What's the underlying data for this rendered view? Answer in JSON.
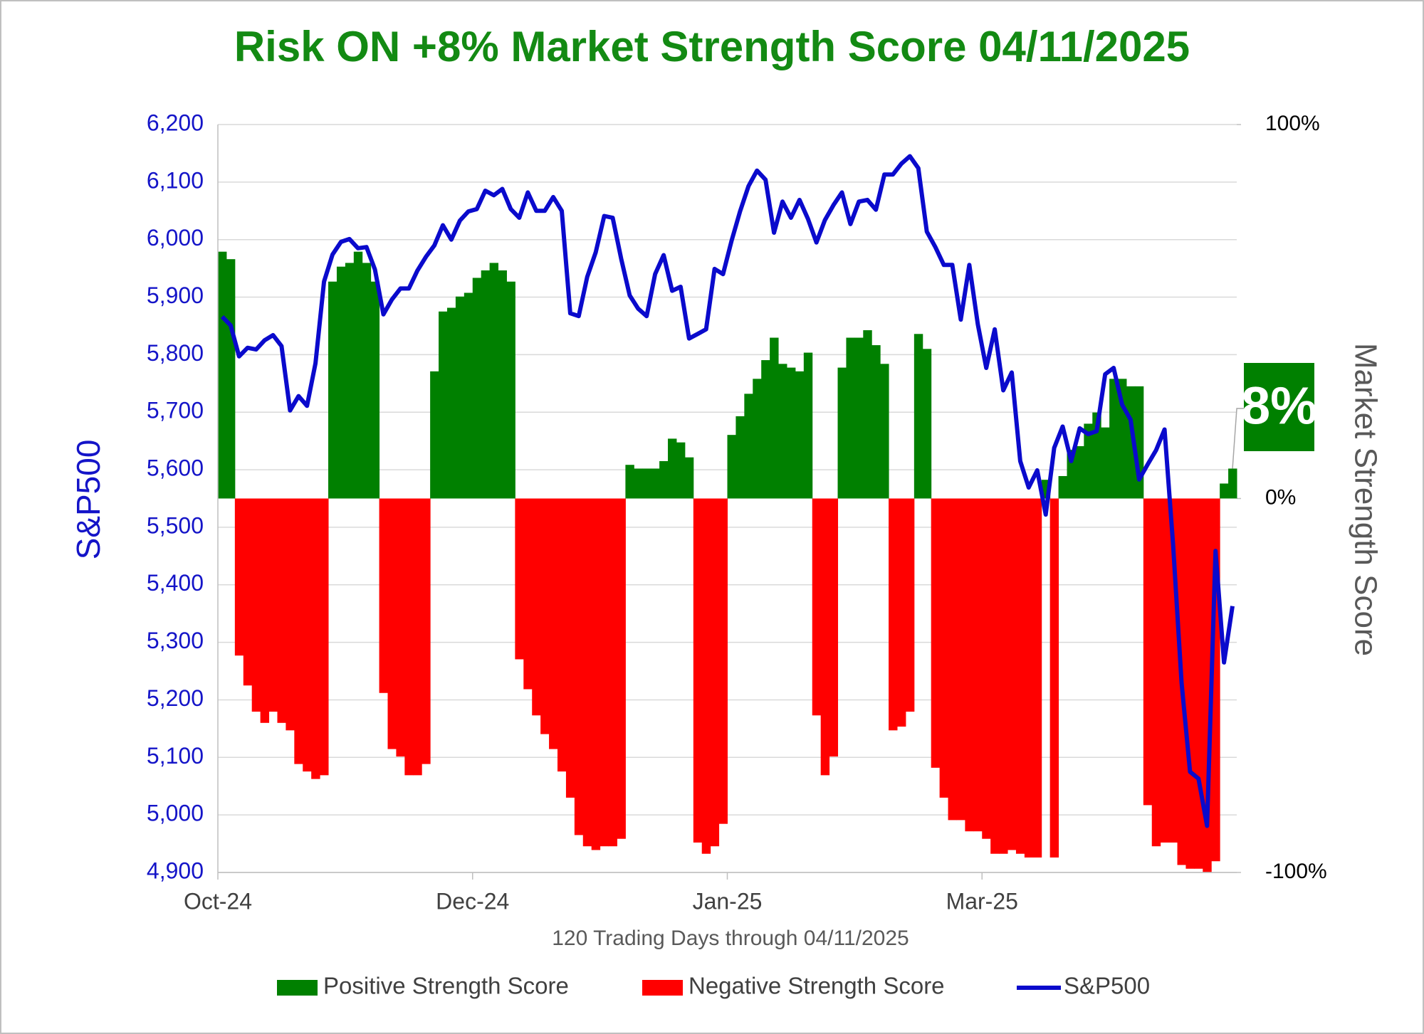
{
  "chart_data": {
    "type": "bar",
    "title": "Risk ON +8% Market Strength Score 04/11/2025",
    "x_label": "120 Trading Days through 04/11/2025",
    "y_label": "S&P500",
    "y2_label": "Market Strength Score",
    "annotation": "8%",
    "grid": true,
    "legend": "bottom",
    "categories": [
      "Oct-24",
      null,
      null,
      null,
      null,
      null,
      null,
      null,
      null,
      null,
      null,
      null,
      null,
      null,
      null,
      null,
      null,
      null,
      null,
      null,
      null,
      null,
      null,
      null,
      null,
      null,
      null,
      null,
      null,
      null,
      "Dec-24",
      null,
      null,
      null,
      null,
      null,
      null,
      null,
      null,
      null,
      null,
      null,
      null,
      null,
      null,
      null,
      null,
      null,
      null,
      null,
      null,
      null,
      null,
      null,
      null,
      null,
      null,
      null,
      null,
      null,
      "Jan-25",
      null,
      null,
      null,
      null,
      null,
      null,
      null,
      null,
      null,
      null,
      null,
      null,
      null,
      null,
      null,
      null,
      null,
      null,
      null,
      null,
      null,
      null,
      null,
      null,
      null,
      null,
      null,
      null,
      null,
      "Mar-25",
      null,
      null,
      null,
      null,
      null,
      null,
      null,
      null,
      null,
      null,
      null,
      null,
      null,
      null,
      null,
      null,
      null,
      null,
      null,
      null,
      null,
      null,
      null,
      null,
      null,
      null,
      null,
      null,
      null
    ],
    "ylim": [
      4900,
      6200
    ],
    "yticks": [
      {
        "value": 4900,
        "label": "4,900"
      },
      {
        "value": 5000,
        "label": "5,000"
      },
      {
        "value": 5100,
        "label": "5,100"
      },
      {
        "value": 5200,
        "label": "5,200"
      },
      {
        "value": 5300,
        "label": "5,300"
      },
      {
        "value": 5400,
        "label": "5,400"
      },
      {
        "value": 5500,
        "label": "5,500"
      },
      {
        "value": 5600,
        "label": "5,600"
      },
      {
        "value": 5700,
        "label": "5,700"
      },
      {
        "value": 5800,
        "label": "5,800"
      },
      {
        "value": 5900,
        "label": "5,900"
      },
      {
        "value": 6000,
        "label": "6,000"
      },
      {
        "value": 6100,
        "label": "6,100"
      },
      {
        "value": 6200,
        "label": "6,200"
      }
    ],
    "y2lim": [
      -100,
      100
    ],
    "y2ticks": [
      {
        "value": -100,
        "label": "-100%"
      },
      {
        "value": 0,
        "label": "0%"
      },
      {
        "value": 100,
        "label": "100%"
      }
    ],
    "series": [
      {
        "name": "Positive Strength Score",
        "type": "bar",
        "axis": "y2",
        "color": "#008000",
        "values": [
          66,
          64,
          null,
          null,
          null,
          null,
          null,
          null,
          null,
          null,
          null,
          null,
          null,
          58,
          62,
          63,
          66,
          63,
          58,
          null,
          null,
          null,
          null,
          null,
          null,
          34,
          50,
          51,
          54,
          55,
          59,
          61,
          63,
          61,
          58,
          null,
          null,
          null,
          null,
          null,
          null,
          null,
          null,
          null,
          null,
          null,
          null,
          null,
          9,
          8,
          8,
          8,
          10,
          16,
          15,
          11,
          null,
          null,
          null,
          null,
          17,
          22,
          28,
          32,
          37,
          43,
          36,
          35,
          34,
          39,
          null,
          null,
          null,
          35,
          43,
          43,
          45,
          41,
          36,
          null,
          null,
          null,
          44,
          40,
          null,
          null,
          null,
          null,
          null,
          null,
          null,
          null,
          null,
          null,
          null,
          null,
          null,
          5,
          null,
          6,
          13,
          14,
          20,
          23,
          19,
          32,
          32,
          30,
          30,
          null,
          null,
          null,
          null,
          null,
          null,
          null,
          null,
          null,
          4,
          8
        ]
      },
      {
        "name": "Negative Strength Score",
        "type": "bar",
        "axis": "y2",
        "color": "#ff0000",
        "values": [
          null,
          null,
          -42,
          -50,
          -57,
          -60,
          -57,
          -60,
          -62,
          -71,
          -73,
          -75,
          -74,
          null,
          null,
          null,
          null,
          null,
          null,
          -52,
          -67,
          -69,
          -74,
          -74,
          -71,
          null,
          null,
          null,
          null,
          null,
          null,
          null,
          null,
          null,
          null,
          -43,
          -51,
          -58,
          -63,
          -67,
          -73,
          -80,
          -90,
          -93,
          -94,
          -93,
          -93,
          -91,
          null,
          null,
          null,
          null,
          null,
          null,
          null,
          null,
          -92,
          -95,
          -93,
          -87,
          null,
          null,
          null,
          null,
          null,
          null,
          null,
          null,
          null,
          null,
          -58,
          -74,
          -69,
          null,
          null,
          null,
          null,
          null,
          null,
          -62,
          -61,
          -57,
          null,
          null,
          -72,
          -80,
          -86,
          -86,
          -89,
          -89,
          -91,
          -95,
          -95,
          -94,
          -95,
          -96,
          -96,
          null,
          -96,
          null,
          null,
          null,
          null,
          null,
          null,
          null,
          null,
          null,
          null,
          -82,
          -93,
          -92,
          -92,
          -98,
          -99,
          -99,
          -100,
          -97,
          null,
          null
        ]
      },
      {
        "name": "S&P500",
        "type": "line",
        "axis": "y",
        "color": "#0a0acc",
        "values": [
          5866,
          5851,
          5797,
          5812,
          5809,
          5825,
          5834,
          5815,
          5703,
          5728,
          5711,
          5785,
          5927,
          5974,
          5996,
          6001,
          5985,
          5987,
          5948,
          5870,
          5896,
          5915,
          5915,
          5946,
          5970,
          5990,
          6025,
          6000,
          6033,
          6049,
          6053,
          6085,
          6077,
          6088,
          6053,
          6038,
          6082,
          6050,
          6050,
          6074,
          6050,
          5872,
          5867,
          5935,
          5978,
          6041,
          6038,
          5967,
          5903,
          5880,
          5867,
          5940,
          5973,
          5911,
          5918,
          5828,
          5836,
          5844,
          5949,
          5940,
          5998,
          6049,
          6093,
          6120,
          6104,
          6012,
          6066,
          6038,
          6069,
          6036,
          5995,
          6034,
          6060,
          6082,
          6027,
          6066,
          6069,
          6052,
          6113,
          6113,
          6132,
          6145,
          6124,
          6014,
          5987,
          5956,
          5956,
          5861,
          5956,
          5853,
          5777,
          5844,
          5738,
          5769,
          5615,
          5569,
          5599,
          5522,
          5638,
          5675,
          5615,
          5672,
          5662,
          5667,
          5766,
          5777,
          5713,
          5687,
          5583,
          5609,
          5634,
          5670,
          5470,
          5230,
          5075,
          5063,
          4981,
          5459,
          5265,
          5363
        ]
      }
    ]
  }
}
